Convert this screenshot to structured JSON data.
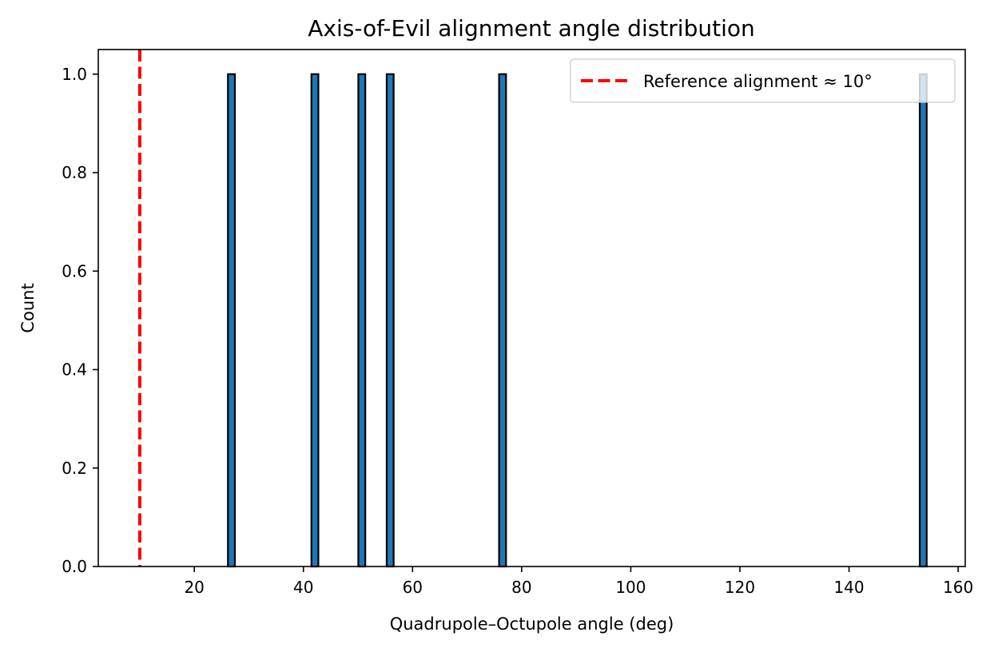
{
  "chart_data": {
    "type": "bar",
    "title": "Axis-of-Evil alignment angle distribution",
    "xlabel": "Quadrupole–Octupole angle (deg)",
    "ylabel": "Count",
    "xlim": [
      2.4,
      161.3
    ],
    "ylim": [
      0,
      1.05
    ],
    "xticks": [
      20,
      40,
      60,
      80,
      100,
      120,
      140,
      160
    ],
    "yticks": [
      0.0,
      0.2,
      0.4,
      0.6,
      0.8,
      1.0
    ],
    "xtick_labels": [
      "20",
      "40",
      "60",
      "80",
      "100",
      "120",
      "140",
      "160"
    ],
    "ytick_labels": [
      "0.0",
      "0.2",
      "0.4",
      "0.6",
      "0.8",
      "1.0"
    ],
    "bin_width": 1.27,
    "bars": [
      {
        "x": 26.8,
        "count": 1
      },
      {
        "x": 42.1,
        "count": 1
      },
      {
        "x": 50.7,
        "count": 1
      },
      {
        "x": 55.9,
        "count": 1
      },
      {
        "x": 76.5,
        "count": 1
      },
      {
        "x": 153.6,
        "count": 1
      }
    ],
    "bar_color": "#1f77b4",
    "bar_edge_color": "#000000",
    "reference_line": {
      "x": 10,
      "color": "#ff0000",
      "style": "dashed"
    },
    "grid": false,
    "legend": {
      "placement": "top-right",
      "entries": [
        {
          "label": "Reference alignment ≈ 10°",
          "color": "#ff0000",
          "style": "dashed"
        }
      ]
    }
  }
}
